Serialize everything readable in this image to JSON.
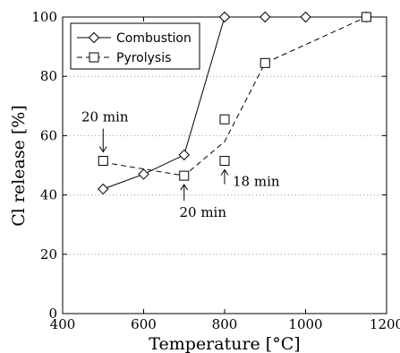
{
  "chart_data": {
    "type": "line",
    "xlabel": "Temperature [°C]",
    "ylabel": "Cl release [%]",
    "xlim": [
      400,
      1200
    ],
    "ylim": [
      0,
      100
    ],
    "x_ticks": [
      "400",
      "600",
      "800",
      "1000",
      "1200"
    ],
    "y_ticks": [
      "0",
      "20",
      "40",
      "60",
      "80",
      "100"
    ],
    "grid": "dotted horizontal",
    "legend_position": "top-left",
    "series": [
      {
        "name": "Combustion",
        "marker": "diamond",
        "line_style": "solid",
        "color": "#000000",
        "x": [
          500,
          600,
          700,
          800,
          900,
          1000,
          1150
        ],
        "y": [
          42,
          47,
          53.5,
          100,
          100,
          100,
          100
        ]
      },
      {
        "name": "Pyrolysis",
        "marker": "square",
        "line_style": "dashed",
        "color": "#000000",
        "line": {
          "x": [
            500,
            700,
            800,
            900,
            1150
          ],
          "y": [
            51,
            46.5,
            58,
            84.5,
            100
          ]
        },
        "points": {
          "x": [
            500,
            700,
            800,
            800,
            900,
            1150
          ],
          "y": [
            51.5,
            46.5,
            65.5,
            51.5,
            84.5,
            100
          ]
        }
      }
    ],
    "annotations": [
      {
        "text": "20 min",
        "x": 500,
        "y": 51.5,
        "arrow": "down"
      },
      {
        "text": "20 min",
        "x": 700,
        "y": 46.5,
        "arrow": "up"
      },
      {
        "text": "18 min",
        "x": 800,
        "y": 51.5,
        "arrow": "up"
      }
    ]
  }
}
